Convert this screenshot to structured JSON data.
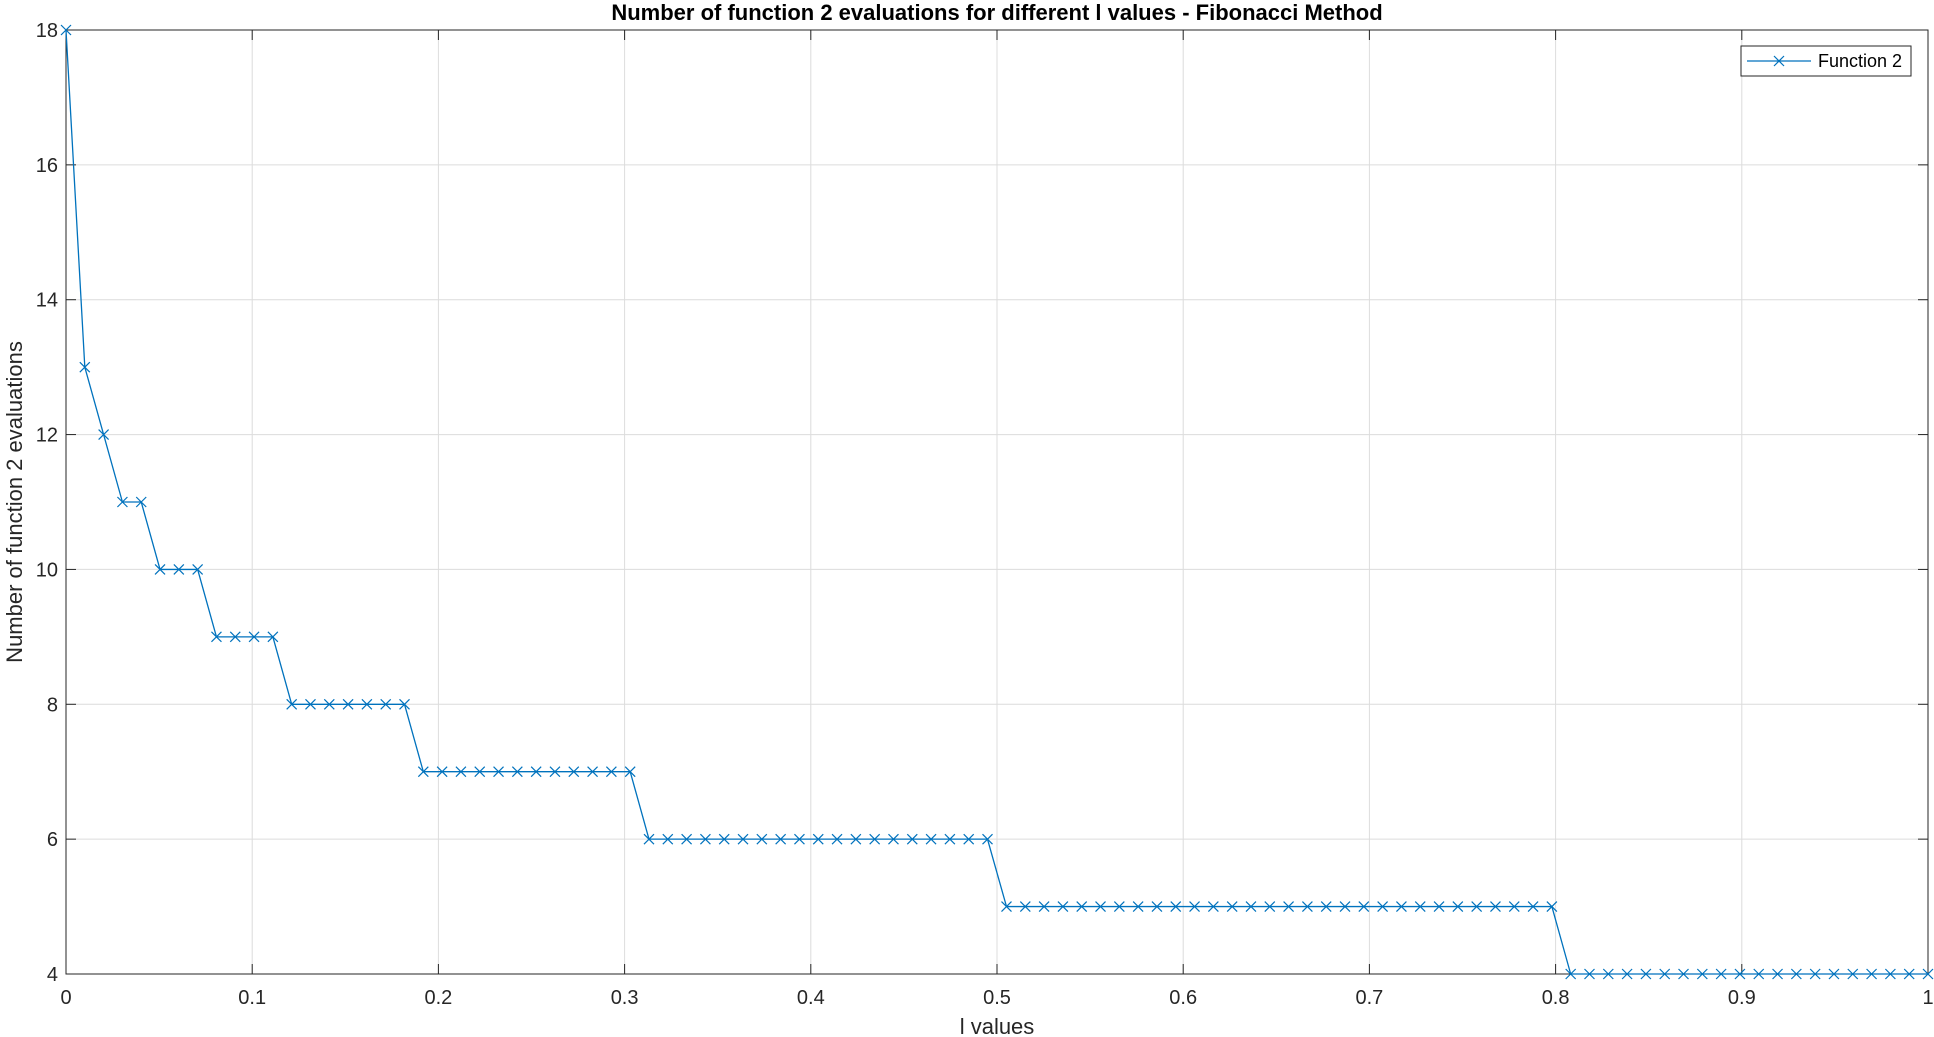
{
  "colors": {
    "series": "#0072BD",
    "grid": "#dcdcdc",
    "axis": "#262626",
    "background": "#ffffff"
  },
  "chart_data": {
    "type": "line",
    "title": "Number of function 2 evaluations for different l values - Fibonacci Method",
    "xlabel": "l values",
    "ylabel": "Number of function 2 evaluations",
    "xlim": [
      0,
      1
    ],
    "ylim": [
      4,
      18
    ],
    "grid": true,
    "legend_position": "top-right",
    "marker": "x",
    "xticks": [
      "0",
      "0.1",
      "0.2",
      "0.3",
      "0.4",
      "0.5",
      "0.6",
      "0.7",
      "0.8",
      "0.9",
      "1"
    ],
    "yticks": [
      "4",
      "6",
      "8",
      "10",
      "12",
      "14",
      "16",
      "18"
    ],
    "series": [
      {
        "name": "Function 2",
        "x": [
          0.0,
          0.0101,
          0.0202,
          0.0303,
          0.0404,
          0.0505,
          0.0606,
          0.0707,
          0.0808,
          0.0909,
          0.101,
          0.1111,
          0.1212,
          0.1313,
          0.1414,
          0.1515,
          0.1616,
          0.1717,
          0.1818,
          0.1919,
          0.202,
          0.2121,
          0.2222,
          0.2323,
          0.2424,
          0.2525,
          0.2626,
          0.2727,
          0.2828,
          0.2929,
          0.303,
          0.3131,
          0.3232,
          0.3333,
          0.3434,
          0.3535,
          0.3636,
          0.3737,
          0.3838,
          0.3939,
          0.404,
          0.4141,
          0.4242,
          0.4343,
          0.4444,
          0.4545,
          0.4646,
          0.4747,
          0.4848,
          0.4949,
          0.5051,
          0.5152,
          0.5253,
          0.5354,
          0.5455,
          0.5556,
          0.5657,
          0.5758,
          0.5859,
          0.596,
          0.6061,
          0.6162,
          0.6263,
          0.6364,
          0.6465,
          0.6566,
          0.6667,
          0.6768,
          0.6869,
          0.697,
          0.7071,
          0.7172,
          0.7273,
          0.7374,
          0.7475,
          0.7576,
          0.7677,
          0.7778,
          0.7879,
          0.798,
          0.8081,
          0.8182,
          0.8283,
          0.8384,
          0.8485,
          0.8586,
          0.8687,
          0.8788,
          0.8889,
          0.899,
          0.9091,
          0.9192,
          0.9293,
          0.9394,
          0.9495,
          0.9596,
          0.9697,
          0.9798,
          0.9899,
          1.0
        ],
        "values": [
          18,
          13,
          12,
          11,
          11,
          10,
          10,
          10,
          9,
          9,
          9,
          9,
          8,
          8,
          8,
          8,
          8,
          8,
          8,
          7,
          7,
          7,
          7,
          7,
          7,
          7,
          7,
          7,
          7,
          7,
          7,
          6,
          6,
          6,
          6,
          6,
          6,
          6,
          6,
          6,
          6,
          6,
          6,
          6,
          6,
          6,
          6,
          6,
          6,
          6,
          5,
          5,
          5,
          5,
          5,
          5,
          5,
          5,
          5,
          5,
          5,
          5,
          5,
          5,
          5,
          5,
          5,
          5,
          5,
          5,
          5,
          5,
          5,
          5,
          5,
          5,
          5,
          5,
          5,
          5,
          4,
          4,
          4,
          4,
          4,
          4,
          4,
          4,
          4,
          4,
          4,
          4,
          4,
          4,
          4,
          4,
          4,
          4,
          4,
          4
        ]
      }
    ]
  }
}
